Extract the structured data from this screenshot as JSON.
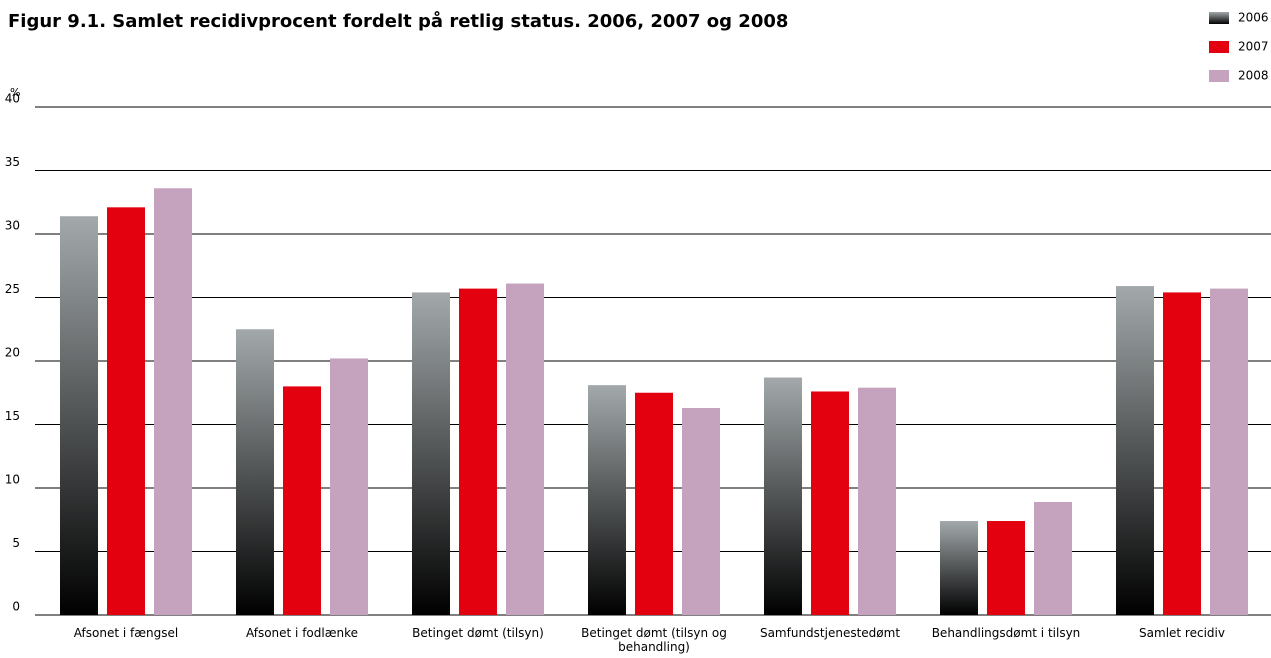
{
  "chart_data": {
    "type": "bar",
    "title": "Figur 9.1. Samlet recidivprocent fordelt på retlig status. 2006, 2007 og 2008",
    "y_label": "%",
    "categories": [
      "Afsonet i fængsel",
      "Afsonet i fodlænke",
      "Betinget dømt (tilsyn)",
      "Betinget dømt (tilsyn og behandling)",
      "Samfundstjenestedømt",
      "Behandlingsdømt i tilsyn",
      "Samlet recidiv"
    ],
    "series": [
      {
        "name": "2006",
        "color": "#a3a9ab",
        "values": [
          31.4,
          22.5,
          25.4,
          18.1,
          18.7,
          7.4,
          25.9
        ]
      },
      {
        "name": "2007",
        "color": "#e3000f",
        "values": [
          32.1,
          18.0,
          25.7,
          17.5,
          17.6,
          7.4,
          25.4
        ]
      },
      {
        "name": "2008",
        "color": "#c5a2bd",
        "values": [
          33.6,
          20.2,
          26.1,
          16.3,
          17.9,
          8.9,
          25.7
        ]
      }
    ],
    "ylim": [
      0,
      40
    ],
    "yticks": [
      0,
      5,
      10,
      15,
      20,
      25,
      30,
      35,
      40
    ],
    "grid": true,
    "legend": "top-right"
  }
}
